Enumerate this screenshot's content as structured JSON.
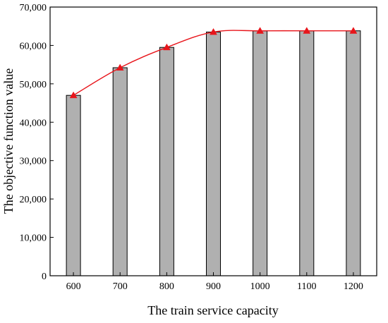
{
  "chart_data": {
    "type": "bar",
    "title": "",
    "xlabel": "The train service capacity",
    "ylabel": "The objective function value",
    "categories": [
      "600",
      "700",
      "800",
      "900",
      "1000",
      "1100",
      "1200"
    ],
    "series": [
      {
        "type": "bar",
        "values": [
          47000,
          54200,
          59500,
          63500,
          63800,
          63800,
          63800
        ],
        "color": "#b0b0b0"
      },
      {
        "type": "line",
        "marker": "triangle",
        "values": [
          47000,
          54200,
          59500,
          63500,
          63800,
          63800,
          63800
        ],
        "color": "#e8151b"
      }
    ],
    "ylim": [
      0,
      70000
    ],
    "yticks": [
      0,
      10000,
      20000,
      30000,
      40000,
      50000,
      60000,
      70000
    ],
    "ytick_labels": [
      "0",
      "10,000",
      "20,000",
      "30,000",
      "40,000",
      "50,000",
      "60,000",
      "70,000"
    ],
    "grid": false,
    "legend": "none"
  }
}
